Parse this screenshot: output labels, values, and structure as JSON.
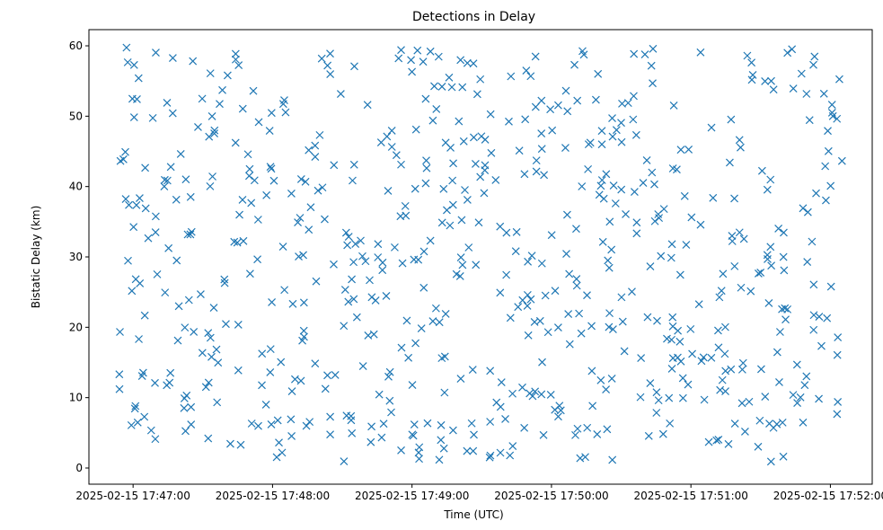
{
  "chart_data": {
    "type": "scatter",
    "title": "Detections in Delay",
    "xlabel": "Time (UTC)",
    "ylabel": "Bistatic Delay (km)",
    "x_axis_kind": "datetime",
    "xlim": [
      "2025-02-15 17:46:41",
      "2025-02-15 17:52:18"
    ],
    "ylim": [
      -2.3,
      62.3
    ],
    "xticks": [
      "2025-02-15 17:47:00",
      "2025-02-15 17:48:00",
      "2025-02-15 17:49:00",
      "2025-02-15 17:50:00",
      "2025-02-15 17:51:00",
      "2025-02-15 17:52:00"
    ],
    "yticks": [
      0,
      10,
      20,
      30,
      40,
      50,
      60
    ],
    "grid": false,
    "legend": "none",
    "marker": "x",
    "color": "#1f77b4",
    "point_count": 660,
    "seed": 20250215
  }
}
